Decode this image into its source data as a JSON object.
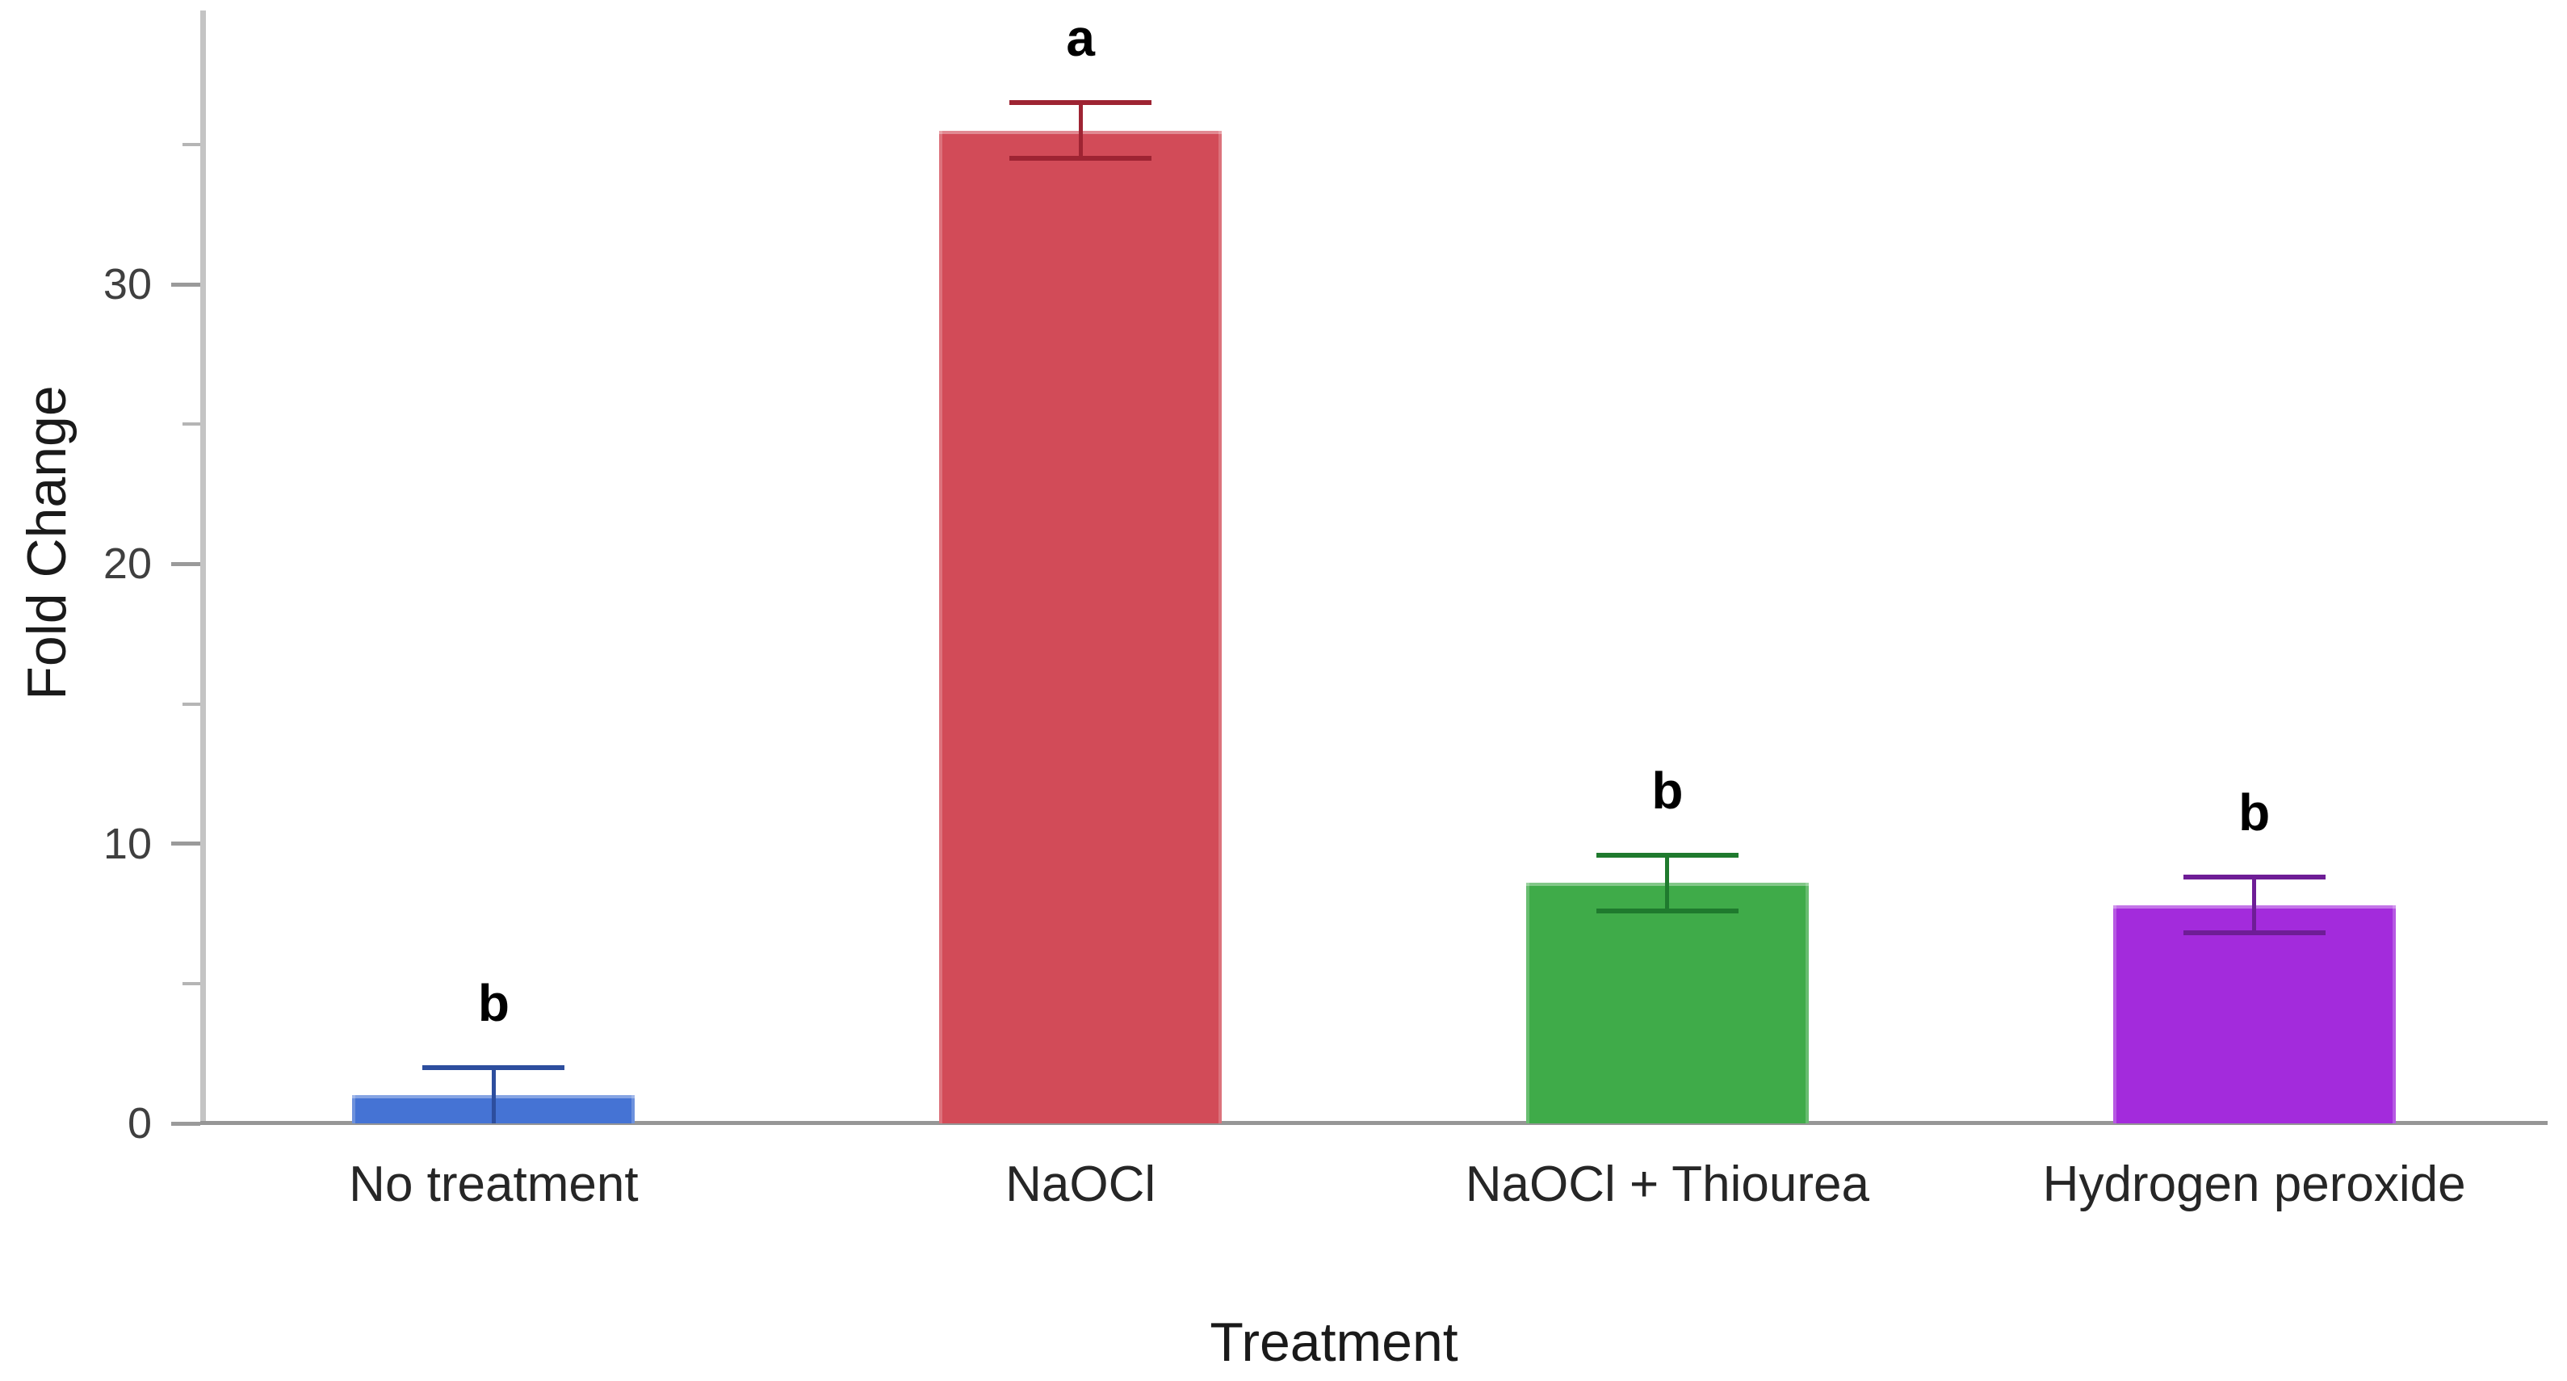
{
  "chart_data": {
    "type": "bar",
    "title": "",
    "xlabel": "Treatment",
    "ylabel": "Fold Change",
    "ylim": [
      0,
      40
    ],
    "yticks_major": [
      0,
      10,
      20,
      30
    ],
    "yticks_minor": [
      5,
      15,
      25,
      35
    ],
    "grid": false,
    "legend": "none",
    "categories": [
      "No treatment",
      "NaOCl",
      "NaOCl + Thiourea",
      "Hydrogen peroxide"
    ],
    "values": [
      1.0,
      35.5,
      8.6,
      7.8
    ],
    "errors": [
      1.0,
      1.0,
      1.0,
      1.0
    ],
    "sig_letters": [
      "b",
      "a",
      "b",
      "b"
    ],
    "bar_colors": [
      "#4573D4",
      "#D24B58",
      "#3FAB49",
      "#A32BDC"
    ],
    "error_colors": [
      "#2D4E9E",
      "#9E2433",
      "#1F7A2E",
      "#6E1D96"
    ]
  },
  "colors": {
    "background": "#FFFFFF",
    "y_axis_line": "#C4C4C4",
    "x_axis_line": "#969696",
    "major_tick": "#9A9A9A",
    "minor_tick": "#B5B5B5",
    "tick_label": "#3F3F3F",
    "axis_title": "#1A1A1A",
    "sig_letter": "#000000"
  }
}
